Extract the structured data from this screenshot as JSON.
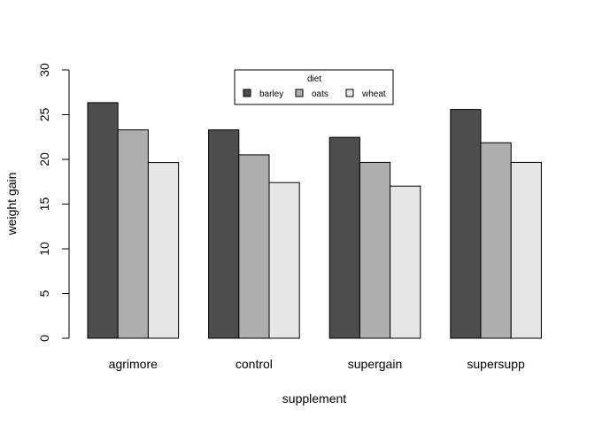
{
  "chart_data": {
    "type": "bar",
    "title": "",
    "xlabel": "supplement",
    "ylabel": "weight gain",
    "ylim": [
      0,
      30
    ],
    "yticks": [
      0,
      5,
      10,
      15,
      20,
      25,
      30
    ],
    "categories": [
      "agrimore",
      "control",
      "supergain",
      "supersupp"
    ],
    "series": [
      {
        "name": "barley",
        "color": "#4d4d4d",
        "values": [
          26.35,
          23.3,
          22.47,
          25.58
        ]
      },
      {
        "name": "oats",
        "color": "#aeaeae",
        "values": [
          23.3,
          20.5,
          19.66,
          21.86
        ]
      },
      {
        "name": "wheat",
        "color": "#e6e6e6",
        "values": [
          19.64,
          17.41,
          17.01,
          19.66
        ]
      }
    ],
    "legend": {
      "title": "diet",
      "placement": "top-center"
    },
    "grid": false
  }
}
